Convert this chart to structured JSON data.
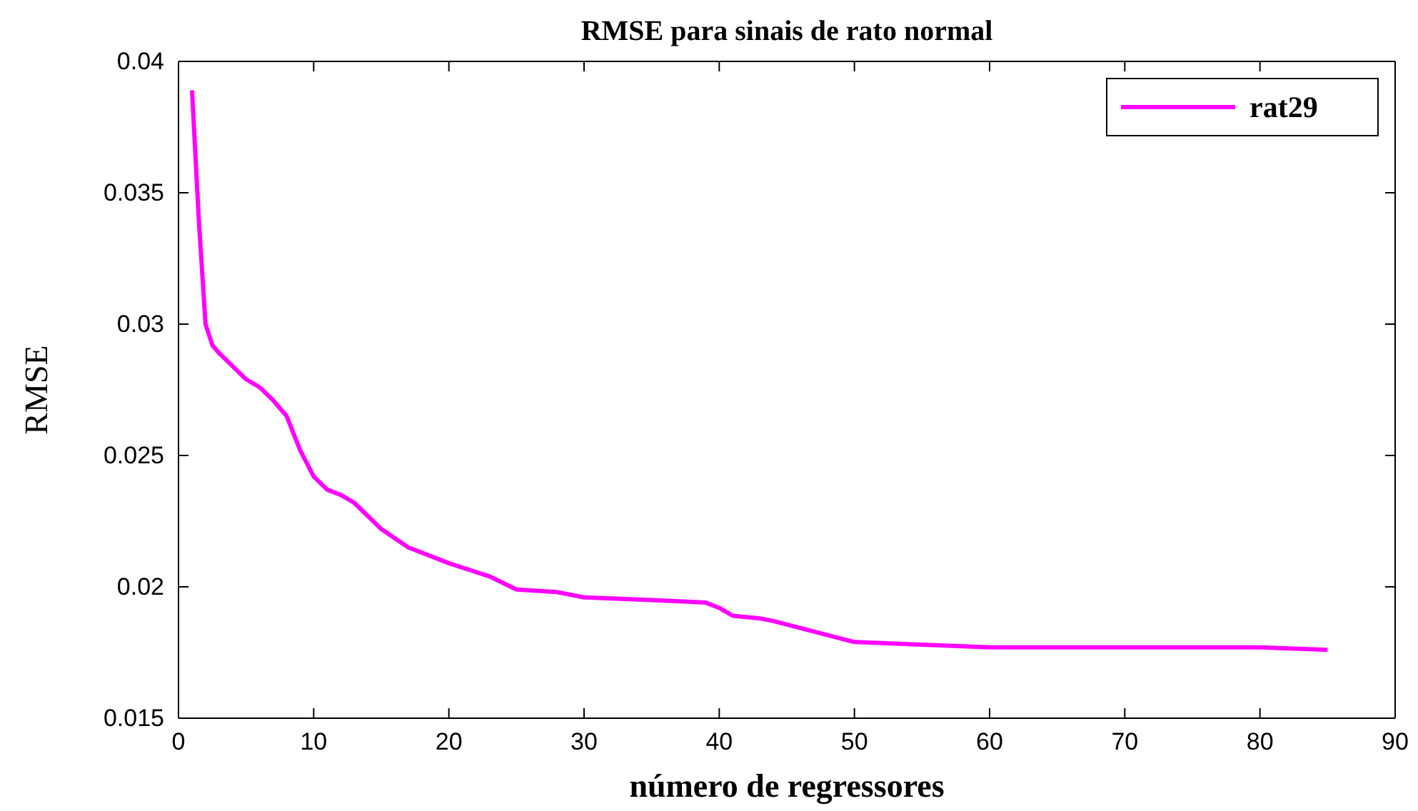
{
  "chart_data": {
    "type": "line",
    "title": "RMSE para sinais de rato normal",
    "xlabel": "número de regressores",
    "ylabel": "RMSE",
    "xlim": [
      0,
      90
    ],
    "xticks": [
      0,
      10,
      20,
      30,
      40,
      50,
      60,
      70,
      80,
      90
    ],
    "ylim": [
      0.015,
      0.04
    ],
    "yticks": [
      0.015,
      0.02,
      0.025,
      0.03,
      0.035,
      0.04
    ],
    "legend": "top right",
    "grid": false,
    "series": [
      {
        "name": "rat29",
        "color": "#ff00ff",
        "x": [
          1,
          1.5,
          2,
          2.5,
          3,
          4,
          5,
          6,
          7,
          8,
          9,
          10,
          11,
          12,
          13,
          15,
          17,
          20,
          23,
          25,
          28,
          30,
          35,
          39,
          40,
          41,
          43,
          44,
          47,
          50,
          55,
          60,
          65,
          70,
          75,
          80,
          85
        ],
        "values": [
          0.0389,
          0.034,
          0.03,
          0.0292,
          0.0289,
          0.0284,
          0.0279,
          0.0276,
          0.0271,
          0.0265,
          0.0252,
          0.0242,
          0.0237,
          0.0235,
          0.0232,
          0.0222,
          0.0215,
          0.0209,
          0.0204,
          0.0199,
          0.0198,
          0.0196,
          0.0195,
          0.0194,
          0.0192,
          0.0189,
          0.0188,
          0.0187,
          0.0183,
          0.0179,
          0.0178,
          0.0177,
          0.0177,
          0.0177,
          0.0177,
          0.0177,
          0.0176
        ]
      }
    ]
  }
}
